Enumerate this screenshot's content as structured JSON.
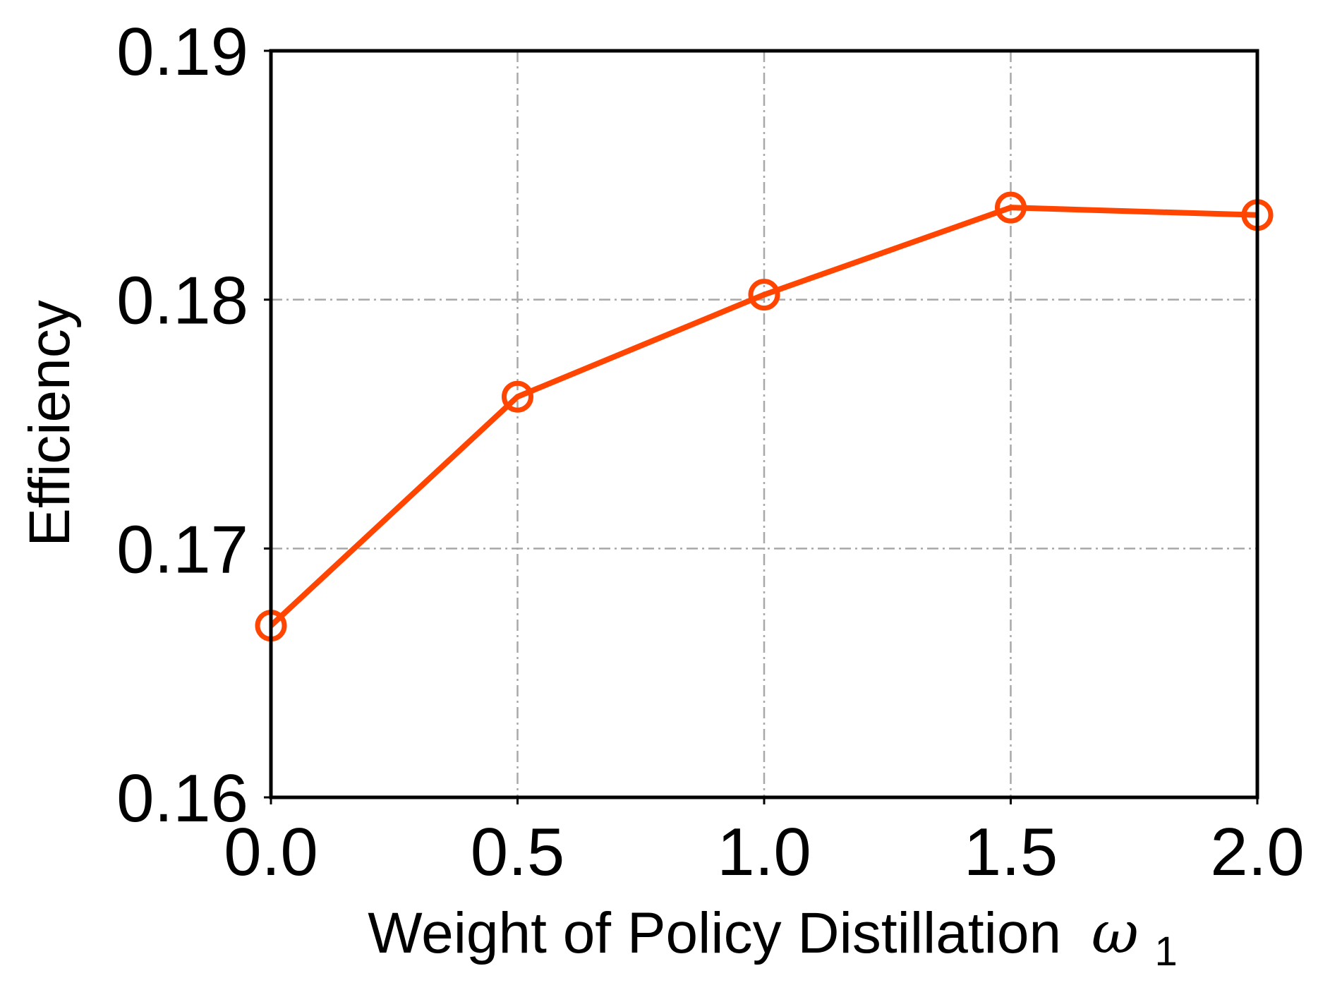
{
  "chart_data": {
    "type": "line",
    "title": "",
    "xlabel": "Weight of Policy Distillation",
    "xlabel_symbol": "ω",
    "xlabel_subscript": "1",
    "ylabel": "Efficiency",
    "x": [
      0.0,
      0.5,
      1.0,
      1.5,
      2.0
    ],
    "xlim": [
      0.0,
      2.0
    ],
    "ylim": [
      0.16,
      0.19
    ],
    "x_ticks": [
      "0.0",
      "0.5",
      "1.0",
      "1.5",
      "2.0"
    ],
    "y_ticks": [
      "0.16",
      "0.17",
      "0.18",
      "0.19"
    ],
    "grid": true,
    "series": [
      {
        "values": [
          0.1669,
          0.1761,
          0.1802,
          0.1837,
          0.1834
        ],
        "color": "#ff4500",
        "marker": "hollow-circle"
      }
    ]
  }
}
